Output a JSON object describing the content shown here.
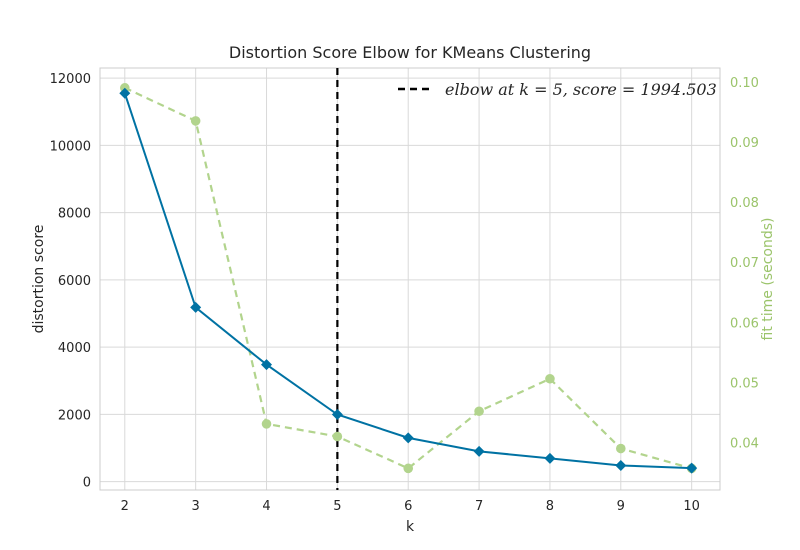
{
  "chart_data": {
    "type": "line",
    "title": "Distortion Score Elbow for KMeans Clustering",
    "xlabel": "k",
    "ylabel": "distortion score",
    "y2label": "fit time (seconds)",
    "x": [
      2,
      3,
      4,
      5,
      6,
      7,
      8,
      9,
      10
    ],
    "xlim": [
      1.65,
      10.4
    ],
    "ylim": [
      -250,
      12300
    ],
    "y2lim": [
      0.0321,
      0.1023
    ],
    "x_ticks": [
      "2",
      "3",
      "4",
      "5",
      "6",
      "7",
      "8",
      "9",
      "10"
    ],
    "y_ticks": [
      "0",
      "2000",
      "4000",
      "6000",
      "8000",
      "10000",
      "12000"
    ],
    "y2_ticks": [
      "0.04",
      "0.05",
      "0.06",
      "0.07",
      "0.08",
      "0.09",
      "0.10"
    ],
    "grid": true,
    "legend_position": "top-right",
    "series": [
      {
        "values": [
          11550,
          5180,
          3480,
          1995,
          1300,
          900,
          690,
          480,
          400
        ],
        "color": "#0072a3",
        "axis": "left"
      },
      {
        "values": [
          0.099,
          0.0935,
          0.0431,
          0.041,
          0.0357,
          0.0452,
          0.0506,
          0.039,
          0.0357
        ],
        "color": "#b2d48d",
        "axis": "right"
      }
    ],
    "elbow": {
      "k": 5,
      "legend_label": "elbow at k = 5, score = 1994.503",
      "color": "#000000"
    }
  }
}
